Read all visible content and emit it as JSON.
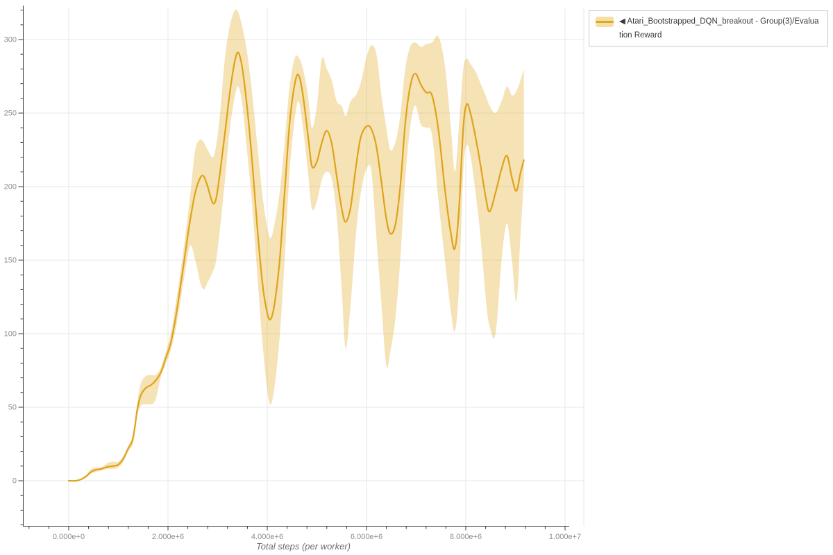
{
  "legend": {
    "series_label": "◀ Atari_Bootstrapped_DQN_breakout - Group(3)/Evaluation Reward",
    "swatch": {
      "band_color": "#f3e0a2",
      "line_color": "#dfa62b"
    }
  },
  "axes": {
    "x_title": "Total steps (per worker)",
    "x_ticks": [
      {
        "label": "0.000e+0",
        "value": 0
      },
      {
        "label": "2.000e+6",
        "value": 2000000
      },
      {
        "label": "4.000e+6",
        "value": 4000000
      },
      {
        "label": "6.000e+6",
        "value": 6000000
      },
      {
        "label": "8.000e+6",
        "value": 8000000
      },
      {
        "label": "1.000e+7",
        "value": 10000000
      }
    ],
    "y_ticks": [
      {
        "label": "0",
        "value": 0
      },
      {
        "label": "50",
        "value": 50
      },
      {
        "label": "100",
        "value": 100
      },
      {
        "label": "150",
        "value": 150
      },
      {
        "label": "200",
        "value": 200
      },
      {
        "label": "250",
        "value": 250
      },
      {
        "label": "300",
        "value": 300
      }
    ]
  },
  "chart_data": {
    "type": "line",
    "band": true,
    "title": "",
    "xlabel": "Total steps (per worker)",
    "ylabel": "",
    "xlim": [
      0,
      10000000
    ],
    "ylim": [
      0,
      300
    ],
    "grid": true,
    "legend_position": "top-right",
    "line_color": "#dfa31a",
    "band_color": "rgba(224,164,25,0.32)",
    "grid_color": "#e7e7e7",
    "axis_color": "#3d3d3d",
    "tick_label_color": "#8c8c8c",
    "axis_title_color": "#6e6e6e",
    "series": [
      {
        "name": "Atari_Bootstrapped_DQN_breakout - Group(3)/Evaluation Reward",
        "x": [
          0,
          150000,
          250000,
          350000,
          450000,
          550000,
          650000,
          780000,
          900000,
          1000000,
          1100000,
          1200000,
          1280000,
          1330000,
          1380000,
          1450000,
          1550000,
          1650000,
          1750000,
          1860000,
          1950000,
          2050000,
          2150000,
          2250000,
          2350000,
          2450000,
          2550000,
          2650000,
          2720000,
          2800000,
          2900000,
          2970000,
          3050000,
          3150000,
          3250000,
          3350000,
          3420000,
          3500000,
          3600000,
          3700000,
          3800000,
          3900000,
          4000000,
          4070000,
          4150000,
          4250000,
          4350000,
          4450000,
          4550000,
          4630000,
          4720000,
          4820000,
          4900000,
          5000000,
          5100000,
          5200000,
          5300000,
          5400000,
          5500000,
          5580000,
          5680000,
          5780000,
          5880000,
          6000000,
          6100000,
          6200000,
          6300000,
          6400000,
          6480000,
          6580000,
          6680000,
          6780000,
          6880000,
          6980000,
          7100000,
          7200000,
          7320000,
          7450000,
          7580000,
          7700000,
          7780000,
          7860000,
          7950000,
          8020000,
          8100000,
          8200000,
          8300000,
          8400000,
          8480000,
          8600000,
          8720000,
          8830000,
          8930000,
          9020000,
          9100000,
          9170000
        ],
        "mean": [
          0,
          0,
          1,
          3,
          6,
          7.5,
          8,
          9.5,
          10,
          11,
          15,
          22,
          27,
          36,
          48,
          58,
          63,
          65,
          68,
          74,
          83,
          93,
          110,
          132,
          155,
          178,
          196,
          206,
          207,
          200,
          189,
          192,
          210,
          237,
          265,
          286,
          291,
          280,
          252,
          215,
          172,
          135,
          114,
          110,
          121,
          150,
          196,
          243,
          269,
          276,
          262,
          235,
          214,
          217,
          230,
          238,
          229,
          207,
          185,
          176,
          186,
          212,
          233,
          241,
          239,
          227,
          203,
          178,
          168,
          174,
          200,
          243,
          268,
          277,
          269,
          264,
          262,
          238,
          198,
          168,
          158,
          183,
          240,
          256,
          249,
          233,
          214,
          193,
          183,
          196,
          212,
          221,
          206,
          197,
          209,
          218
        ],
        "lower": [
          0,
          0,
          0.5,
          2,
          5,
          6,
          7,
          8,
          8,
          9,
          13,
          20,
          24,
          32,
          44,
          51,
          52,
          52,
          55,
          71,
          79,
          88,
          102,
          122,
          143,
          160,
          150,
          135,
          130,
          135,
          142,
          150,
          172,
          205,
          240,
          262,
          268,
          255,
          222,
          185,
          140,
          95,
          62,
          52,
          65,
          98,
          150,
          210,
          245,
          258,
          240,
          210,
          185,
          190,
          205,
          210,
          205,
          180,
          130,
          90,
          120,
          165,
          195,
          212,
          210,
          165,
          120,
          78,
          88,
          110,
          150,
          205,
          240,
          255,
          242,
          240,
          235,
          190,
          150,
          115,
          102,
          130,
          210,
          228,
          220,
          195,
          165,
          125,
          105,
          100,
          150,
          175,
          150,
          122,
          165,
          205
        ],
        "upper": [
          0,
          0,
          1.5,
          4,
          8,
          9,
          9,
          12,
          13,
          13,
          17,
          24,
          30,
          40,
          53,
          66,
          71,
          72,
          72,
          77,
          87,
          99,
          119,
          142,
          167,
          195,
          225,
          232,
          230,
          225,
          220,
          228,
          250,
          288,
          310,
          320,
          318,
          308,
          290,
          262,
          228,
          195,
          172,
          165,
          175,
          196,
          230,
          268,
          287,
          288,
          280,
          262,
          240,
          255,
          287,
          280,
          272,
          258,
          255,
          248,
          258,
          262,
          270,
          288,
          296,
          290,
          262,
          240,
          225,
          230,
          248,
          280,
          295,
          298,
          295,
          297,
          298,
          302,
          282,
          240,
          210,
          240,
          280,
          287,
          283,
          278,
          270,
          262,
          255,
          250,
          258,
          268,
          262,
          265,
          272,
          280
        ]
      }
    ]
  }
}
